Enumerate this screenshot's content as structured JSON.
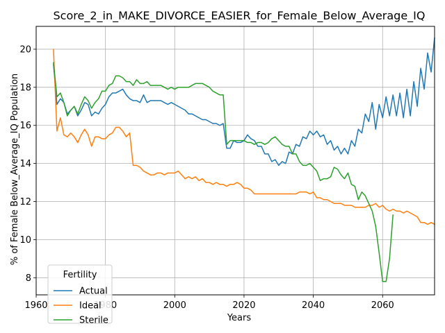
{
  "chart_data": {
    "type": "line",
    "title": "Score_2_in_MAKE_DIVORCE_EASIER_for_Female_Below_Average_IQ",
    "xlabel": "Years",
    "ylabel": "% of Female Below_Average_IQ Population",
    "xlim": [
      1960,
      2075
    ],
    "ylim": [
      7.1,
      21.2
    ],
    "xticks": [
      1960,
      1980,
      2000,
      2020,
      2040,
      2060
    ],
    "yticks": [
      8,
      10,
      12,
      14,
      16,
      18,
      20
    ],
    "grid": true,
    "legend": {
      "title": "Fertility",
      "position": "bottom-left"
    },
    "x_start": 1965,
    "series": [
      {
        "name": "Actual",
        "color": "#1f77b4",
        "values": [
          19.2,
          17.1,
          17.4,
          17.2,
          16.6,
          16.8,
          17.0,
          16.5,
          16.8,
          17.2,
          17.1,
          16.5,
          16.7,
          16.6,
          16.9,
          17.1,
          17.5,
          17.7,
          17.7,
          17.8,
          17.9,
          17.6,
          17.4,
          17.3,
          17.3,
          17.2,
          17.6,
          17.2,
          17.3,
          17.3,
          17.3,
          17.3,
          17.2,
          17.1,
          17.2,
          17.1,
          17.0,
          16.9,
          16.8,
          16.6,
          16.6,
          16.5,
          16.4,
          16.3,
          16.3,
          16.2,
          16.1,
          16.1,
          16.0,
          16.1,
          14.8,
          14.8,
          15.2,
          15.1,
          15.1,
          15.2,
          15.5,
          15.3,
          15.2,
          14.9,
          14.9,
          14.5,
          14.5,
          14.1,
          14.2,
          13.9,
          14.1,
          14.0,
          14.6,
          14.5,
          15.0,
          14.9,
          15.4,
          15.3,
          15.7,
          15.5,
          15.7,
          15.4,
          15.5,
          15.0,
          15.2,
          14.7,
          14.9,
          14.5,
          14.8,
          14.5,
          15.2,
          14.9,
          15.8,
          15.6,
          16.6,
          16.2,
          17.2,
          15.8,
          17.1,
          16.4,
          17.5,
          16.5,
          17.6,
          16.5,
          17.7,
          16.4,
          17.9,
          16.5,
          18.3,
          17.0,
          19.0,
          17.9,
          19.8,
          18.8,
          20.6
        ]
      },
      {
        "name": "Ideal",
        "color": "#ff7f0e",
        "values": [
          20.0,
          15.7,
          16.4,
          15.5,
          15.4,
          15.6,
          15.4,
          15.1,
          15.5,
          15.8,
          15.5,
          14.9,
          15.4,
          15.4,
          15.3,
          15.3,
          15.5,
          15.6,
          15.9,
          15.9,
          15.7,
          15.4,
          15.6,
          13.9,
          13.9,
          13.8,
          13.6,
          13.5,
          13.4,
          13.4,
          13.5,
          13.5,
          13.4,
          13.5,
          13.5,
          13.5,
          13.6,
          13.4,
          13.2,
          13.3,
          13.2,
          13.3,
          13.1,
          13.2,
          13.0,
          13.0,
          12.9,
          13.0,
          12.9,
          12.9,
          12.8,
          12.9,
          12.9,
          13.0,
          12.9,
          12.7,
          12.7,
          12.6,
          12.4,
          12.4,
          12.4,
          12.4,
          12.4,
          12.4,
          12.4,
          12.4,
          12.4,
          12.4,
          12.4,
          12.4,
          12.4,
          12.5,
          12.5,
          12.5,
          12.4,
          12.5,
          12.2,
          12.2,
          12.1,
          12.1,
          12.0,
          11.9,
          11.9,
          11.9,
          11.8,
          11.8,
          11.8,
          11.7,
          11.7,
          11.7,
          11.7,
          11.8,
          11.8,
          11.9,
          11.7,
          11.8,
          11.6,
          11.5,
          11.6,
          11.5,
          11.5,
          11.4,
          11.5,
          11.4,
          11.3,
          11.2,
          10.9,
          10.9,
          10.8,
          10.9,
          10.8
        ]
      },
      {
        "name": "Sterile",
        "color": "#2ca02c",
        "values": [
          19.3,
          17.5,
          17.7,
          17.2,
          16.5,
          16.8,
          17.0,
          16.6,
          17.1,
          17.5,
          17.3,
          16.9,
          17.2,
          17.4,
          17.8,
          17.8,
          18.1,
          18.2,
          18.6,
          18.6,
          18.5,
          18.3,
          18.3,
          18.1,
          18.4,
          18.2,
          18.2,
          18.3,
          18.1,
          18.1,
          18.1,
          18.1,
          18.0,
          17.9,
          18.0,
          17.9,
          18.0,
          18.0,
          18.0,
          18.0,
          18.1,
          18.2,
          18.2,
          18.2,
          18.1,
          18.0,
          17.8,
          17.7,
          17.6,
          17.6,
          15.0,
          15.2,
          15.2,
          15.2,
          15.2,
          15.2,
          15.1,
          15.1,
          15.0,
          15.1,
          15.1,
          15.0,
          15.1,
          15.3,
          15.4,
          15.2,
          15.0,
          14.9,
          14.9,
          14.5,
          14.5,
          14.1,
          13.9,
          13.9,
          14.0,
          13.8,
          13.6,
          13.1,
          13.2,
          13.2,
          13.3,
          13.8,
          13.7,
          13.4,
          13.2,
          13.5,
          12.9,
          12.8,
          12.1,
          12.5,
          12.3,
          11.9,
          11.5,
          10.7,
          9.3,
          7.8,
          7.8,
          9.0,
          11.3
        ]
      }
    ]
  }
}
